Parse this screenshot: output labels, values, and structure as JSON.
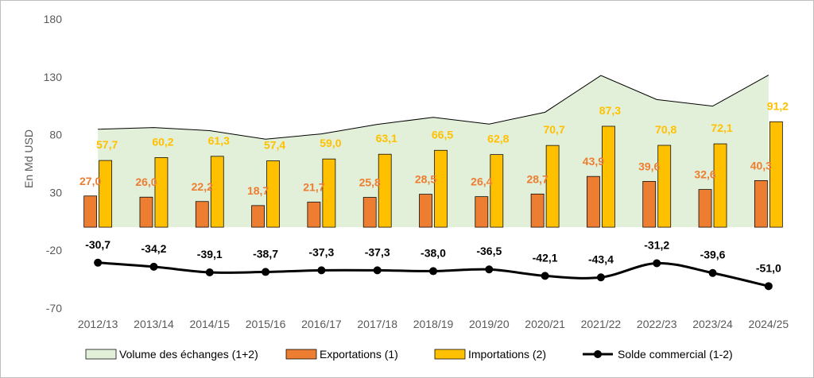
{
  "chart_data": {
    "type": "bar",
    "ylabel": "En Md USD",
    "ylim": [
      -70,
      180
    ],
    "yticks": [
      180,
      130,
      80,
      30,
      -20,
      -70
    ],
    "grid": false,
    "legend_position": "bottom",
    "categories": [
      "2012/13",
      "2013/14",
      "2014/15",
      "2015/16",
      "2016/17",
      "2017/18",
      "2018/19",
      "2019/20",
      "2020/21",
      "2021/22",
      "2022/23",
      "2023/24",
      "2024/25"
    ],
    "series": [
      {
        "name": "Volume des échanges (1+2)",
        "kind": "area",
        "color": "#E2F0D9",
        "line_color": "#000000",
        "values": [
          84.7,
          86.2,
          83.5,
          76.1,
          80.7,
          88.9,
          95.0,
          89.2,
          99.4,
          131.2,
          110.4,
          104.7,
          131.5
        ]
      },
      {
        "name": "Exportations (1)",
        "kind": "bar",
        "color": "#ED7D31",
        "values": [
          27.0,
          26.0,
          22.2,
          18.7,
          21.7,
          25.8,
          28.5,
          26.4,
          28.7,
          43.9,
          39.6,
          32.6,
          40.3
        ],
        "labels": [
          "27,0",
          "26,0",
          "22,2",
          "18,7",
          "21,7",
          "25,8",
          "28,5",
          "26,4",
          "28,7",
          "43,9",
          "39,6",
          "32,6",
          "40,3"
        ]
      },
      {
        "name": "Importations (2)",
        "kind": "bar",
        "color": "#FFC000",
        "values": [
          57.7,
          60.2,
          61.3,
          57.4,
          59.0,
          63.1,
          66.5,
          62.8,
          70.7,
          87.3,
          70.8,
          72.1,
          91.2
        ],
        "labels": [
          "57,7",
          "60,2",
          "61,3",
          "57,4",
          "59,0",
          "63,1",
          "66,5",
          "62,8",
          "70,7",
          "87,3",
          "70,8",
          "72,1",
          "91,2"
        ]
      },
      {
        "name": "Solde commercial (1-2)",
        "kind": "line",
        "color": "#000000",
        "values": [
          -30.7,
          -34.2,
          -39.1,
          -38.7,
          -37.3,
          -37.3,
          -38.0,
          -36.5,
          -42.1,
          -43.4,
          -31.2,
          -39.6,
          -51.0
        ],
        "labels": [
          "-30,7",
          "-34,2",
          "-39,1",
          "-38,7",
          "-37,3",
          "-37,3",
          "-38,0",
          "-36,5",
          "-42,1",
          "-43,4",
          "-31,2",
          "-39,6",
          "-51,0"
        ]
      }
    ]
  }
}
